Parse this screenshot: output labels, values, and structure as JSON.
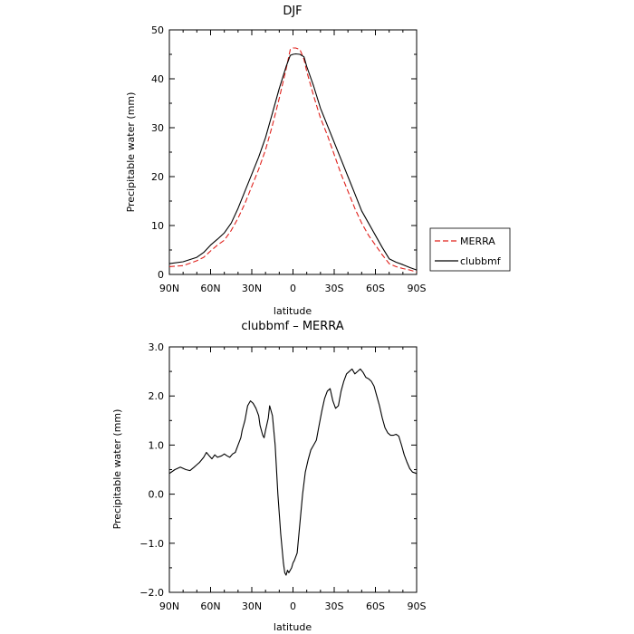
{
  "chart_data": [
    {
      "type": "line",
      "title": "DJF",
      "xlabel": "latitude",
      "ylabel": "Precipitable water (mm)",
      "xlim": [
        90,
        -90
      ],
      "ylim": [
        0,
        50
      ],
      "xticks": [
        90,
        60,
        30,
        0,
        -30,
        -60,
        -90
      ],
      "xtick_labels": [
        "90N",
        "60N",
        "30N",
        "0",
        "30S",
        "60S",
        "90S"
      ],
      "yticks": [
        0,
        10,
        20,
        30,
        40,
        50
      ],
      "ytick_labels": [
        "0",
        "10",
        "20",
        "30",
        "40",
        "50"
      ],
      "grid": false,
      "legend_position": "right-bottom, outside",
      "series": [
        {
          "name": "MERRA",
          "color": "#e0201b",
          "dash": "dashed",
          "x": [
            90,
            80,
            70,
            65,
            60,
            55,
            50,
            45,
            40,
            35,
            30,
            25,
            20,
            15,
            10,
            5,
            2,
            0,
            -2,
            -5,
            -8,
            -10,
            -15,
            -20,
            -25,
            -30,
            -35,
            -40,
            -45,
            -50,
            -55,
            -60,
            -65,
            -70,
            -75,
            -80,
            -85,
            -90
          ],
          "y": [
            1.6,
            1.8,
            2.8,
            3.5,
            4.8,
            6.0,
            7.0,
            9.0,
            11.5,
            14.5,
            18.0,
            21.5,
            25.5,
            30.5,
            36.0,
            42.0,
            46.0,
            46.3,
            46.3,
            46.0,
            44.0,
            41.5,
            36.5,
            32.0,
            28.5,
            24.5,
            20.5,
            17.0,
            13.5,
            10.5,
            8.0,
            6.0,
            4.0,
            2.2,
            1.6,
            1.2,
            0.9,
            0.5
          ]
        },
        {
          "name": "clubbmf",
          "color": "#000000",
          "dash": "solid",
          "x": [
            90,
            80,
            70,
            65,
            60,
            55,
            50,
            45,
            40,
            35,
            30,
            25,
            20,
            15,
            10,
            5,
            2,
            0,
            -2,
            -5,
            -8,
            -10,
            -15,
            -20,
            -25,
            -30,
            -35,
            -40,
            -45,
            -50,
            -55,
            -60,
            -65,
            -70,
            -75,
            -80,
            -85,
            -90
          ],
          "y": [
            2.2,
            2.6,
            3.5,
            4.5,
            6.0,
            7.2,
            8.5,
            10.5,
            13.5,
            17.0,
            20.5,
            24.0,
            28.0,
            33.0,
            38.0,
            42.5,
            44.8,
            45.0,
            45.1,
            45.0,
            44.5,
            42.5,
            38.5,
            34.0,
            30.5,
            27.0,
            23.5,
            20.0,
            16.5,
            13.0,
            10.5,
            8.0,
            5.5,
            3.2,
            2.5,
            2.0,
            1.4,
            0.9
          ]
        }
      ]
    },
    {
      "type": "line",
      "title": "clubbmf – MERRA",
      "xlabel": "latitude",
      "ylabel": "Precipitable water (mm)",
      "xlim": [
        90,
        -90
      ],
      "ylim": [
        -2,
        3
      ],
      "xticks": [
        90,
        60,
        30,
        0,
        -30,
        -60,
        -90
      ],
      "xtick_labels": [
        "90N",
        "60N",
        "30N",
        "0",
        "30S",
        "60S",
        "90S"
      ],
      "yticks": [
        -2,
        -1,
        0,
        1,
        2,
        3
      ],
      "ytick_labels": [
        "−2.0",
        "−1.0",
        "0.0",
        "1.0",
        "2.0",
        "3.0"
      ],
      "grid": false,
      "series": [
        {
          "color": "#000000",
          "dash": "solid",
          "x": [
            90,
            86,
            82,
            78,
            75,
            72,
            70,
            68,
            65,
            63,
            61,
            59,
            57,
            55,
            52,
            50,
            48,
            46,
            44,
            42,
            40,
            38,
            37,
            35,
            33,
            31,
            29,
            27,
            25,
            24,
            22,
            21,
            20,
            18,
            17,
            15,
            13,
            11,
            9,
            7,
            6,
            5,
            4,
            3,
            1,
            0,
            -1,
            -3,
            -5,
            -7,
            -9,
            -11,
            -13,
            -15,
            -17,
            -19,
            -21,
            -23,
            -25,
            -27,
            -29,
            -31,
            -33,
            -35,
            -37,
            -39,
            -41,
            -43,
            -45,
            -47,
            -49,
            -51,
            -53,
            -55,
            -57,
            -59,
            -61,
            -63,
            -65,
            -67,
            -69,
            -71,
            -73,
            -75,
            -77,
            -79,
            -81,
            -83,
            -85,
            -87,
            -90
          ],
          "y": [
            0.42,
            0.5,
            0.55,
            0.5,
            0.48,
            0.55,
            0.6,
            0.65,
            0.75,
            0.85,
            0.78,
            0.72,
            0.8,
            0.75,
            0.78,
            0.82,
            0.78,
            0.75,
            0.82,
            0.85,
            1.0,
            1.15,
            1.3,
            1.5,
            1.8,
            1.9,
            1.85,
            1.75,
            1.6,
            1.4,
            1.2,
            1.15,
            1.3,
            1.55,
            1.8,
            1.6,
            1.0,
            0.0,
            -0.8,
            -1.4,
            -1.6,
            -1.65,
            -1.55,
            -1.6,
            -1.5,
            -1.4,
            -1.35,
            -1.2,
            -0.6,
            0.0,
            0.45,
            0.7,
            0.9,
            1.0,
            1.1,
            1.4,
            1.7,
            1.95,
            2.1,
            2.15,
            1.9,
            1.75,
            1.8,
            2.1,
            2.3,
            2.45,
            2.5,
            2.55,
            2.45,
            2.5,
            2.55,
            2.48,
            2.38,
            2.35,
            2.3,
            2.2,
            2.0,
            1.8,
            1.55,
            1.35,
            1.25,
            1.2,
            1.2,
            1.22,
            1.18,
            1.0,
            0.8,
            0.65,
            0.52,
            0.45,
            0.42
          ]
        }
      ]
    }
  ]
}
